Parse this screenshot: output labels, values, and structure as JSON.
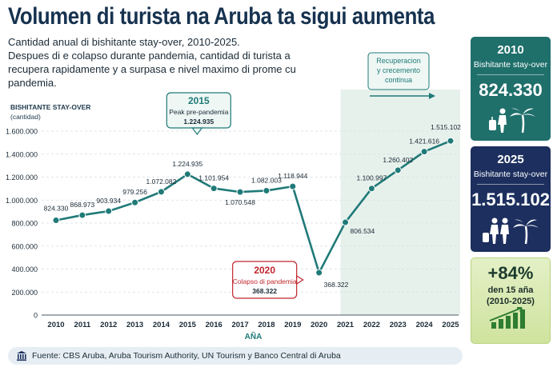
{
  "header": {
    "title": "Volumen di turista na Aruba ta sigui aumenta",
    "subtitle_line1": "Cantidad anual di bishitante stay-over, 2010-2025.",
    "subtitle_line2": "Despues di e colapso durante pandemia, cantidad di turista a recupera rapidamente y a surpasa e nivel maximo di prome cu pandemia."
  },
  "chart_data": {
    "type": "line",
    "ylabel": "BISHITANTE STAY-OVER",
    "ylabel_unit": "(cantidad)",
    "xlabel": "AÑA",
    "ylim": [
      0,
      1600000
    ],
    "yticks": [
      "0",
      "200.000",
      "400.000",
      "600.000",
      "800.000",
      "1.000.000",
      "1.200.000",
      "1.400.000",
      "1.600.000"
    ],
    "x": [
      "2010",
      "2011",
      "2012",
      "2013",
      "2014",
      "2015",
      "2016",
      "2017",
      "2018",
      "2019",
      "2020",
      "2021",
      "2022",
      "2023",
      "2024",
      "2025"
    ],
    "values": [
      824330,
      868973,
      903934,
      979256,
      1072082,
      1224935,
      1101954,
      1070548,
      1082003,
      1118944,
      368322,
      806534,
      1100997,
      1260402,
      1421616,
      1515102
    ],
    "data_labels": [
      "824.330",
      "868.973",
      "903.934",
      "979.256",
      "1.072.082",
      "1.224.935",
      "1.101.954",
      "1.070.548",
      "1.082.003",
      "1.118.944",
      "368.322",
      "806.534",
      "1.100.997",
      "1.260.402",
      "1.421.616",
      "1.515.102"
    ],
    "line_color": "#1f7a78",
    "recovery_shade_color": "#e7f1ec",
    "annotations": {
      "peak": {
        "year": "2015",
        "label": "Peak pre-pandemia",
        "value": "1.224.935"
      },
      "collapse": {
        "year": "2020",
        "label": "Colapso di pandemia",
        "value": "368.322"
      },
      "recovery": {
        "line1": "Recuperacion",
        "line2": "y crecemento",
        "line3": "continua"
      }
    }
  },
  "cards": {
    "c2010": {
      "year": "2010",
      "label": "Bishitante stay-over",
      "value": "824.330",
      "icons": "traveler-palm-icon"
    },
    "c2025": {
      "year": "2025",
      "label": "Bishitante stay-over",
      "value": "1.515.102",
      "icons": "couple-palm-icon"
    },
    "growth": {
      "value": "+84%",
      "label1": "den 15 aña",
      "label2": "(2010-2025)",
      "icon": "growth-bars-icon"
    }
  },
  "footer": {
    "text": "Fuente: CBS Aruba, Aruba Tourism Authority, UN Tourism y Banco Central di Aruba"
  },
  "colors": {
    "title": "#16324f",
    "teal": "#1f6f6b",
    "navy": "#1c2f5e",
    "collapse_red": "#c0262d",
    "green": "#8bbd3a"
  }
}
